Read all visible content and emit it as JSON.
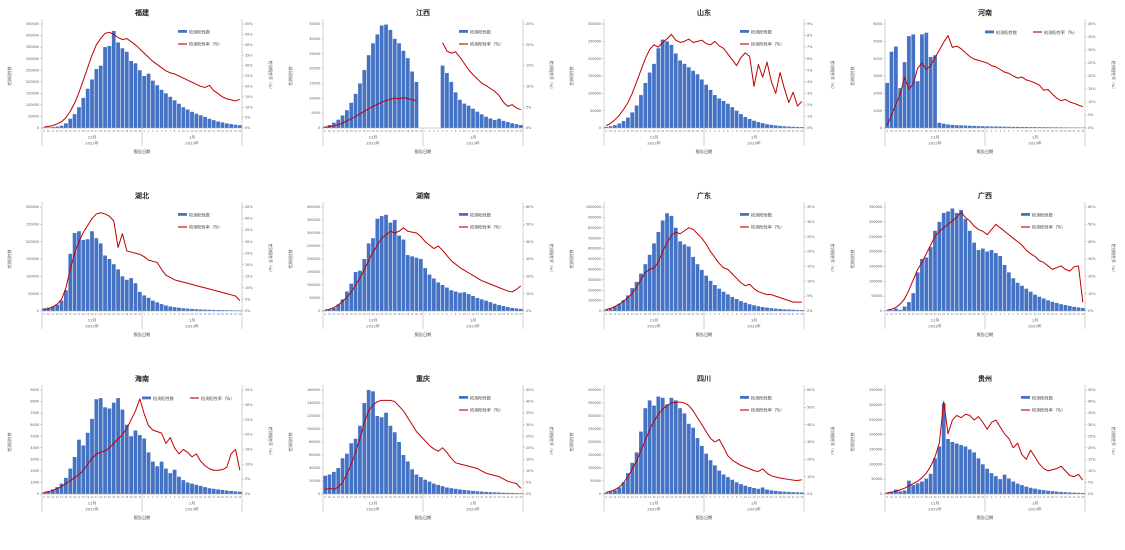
{
  "shared": {
    "legend": {
      "bars": "检测阳性数",
      "rate": "检测阳性率（%）"
    },
    "y_left_title": "检测阳性数",
    "y_right_title": "检测阳性率（%）",
    "x_axis": {
      "title": "报告日期",
      "month_labels": [
        "12月",
        "1月"
      ],
      "year_labels": [
        "2022年",
        "2023年"
      ],
      "days": [
        "9",
        "10",
        "11",
        "12",
        "13",
        "14",
        "15",
        "16",
        "17",
        "18",
        "19",
        "20",
        "21",
        "22",
        "23",
        "24",
        "25",
        "26",
        "27",
        "28",
        "29",
        "30",
        "31",
        "1",
        "2",
        "3",
        "4",
        "5",
        "6",
        "7",
        "8",
        "9",
        "10",
        "11",
        "12",
        "13",
        "14",
        "15",
        "16",
        "17",
        "18",
        "19",
        "20",
        "21",
        "22",
        "23"
      ]
    },
    "colors": {
      "bar": "#4472c4",
      "line": "#c00000",
      "axis": "#a6a6a6"
    }
  },
  "chart_data": [
    {
      "id": "fujian",
      "title": "福建",
      "type": "bar+line",
      "left_max": 450000,
      "left_step": 50000,
      "right_max": 50,
      "right_step": 5,
      "legend": "v",
      "bars": [
        2000,
        3000,
        4000,
        6000,
        10000,
        20000,
        40000,
        60000,
        90000,
        130000,
        170000,
        210000,
        255000,
        270000,
        350000,
        355000,
        420000,
        370000,
        345000,
        330000,
        290000,
        280000,
        250000,
        225000,
        235000,
        205000,
        185000,
        165000,
        150000,
        135000,
        120000,
        105000,
        90000,
        80000,
        70000,
        62000,
        55000,
        48000,
        40000,
        34000,
        28000,
        24000,
        20000,
        17000,
        14000,
        12000
      ],
      "rate": [
        0.5,
        0.8,
        1.2,
        2,
        3,
        5,
        8,
        12,
        17,
        23,
        29,
        35,
        40,
        43,
        45.5,
        46,
        45,
        43.5,
        42.5,
        43,
        41.5,
        40,
        38,
        36,
        34,
        32,
        30.5,
        29,
        27.5,
        26.5,
        26,
        25,
        24,
        23,
        22,
        21,
        20,
        19.5,
        20.5,
        18,
        16.5,
        15,
        14,
        13.5,
        13,
        13.8
      ]
    },
    {
      "id": "jiangxi",
      "title": "江西",
      "type": "bar+line",
      "left_max": 35000,
      "left_step": 5000,
      "right_max": 25,
      "right_step": 5,
      "legend": "v",
      "bars": [
        500,
        1000,
        1800,
        2800,
        4200,
        6000,
        8500,
        11500,
        15000,
        19500,
        24500,
        28500,
        31500,
        34500,
        34800,
        33000,
        30000,
        28500,
        26000,
        23500,
        19000,
        15500,
        null,
        null,
        null,
        null,
        null,
        21000,
        18500,
        15500,
        12000,
        9500,
        8200,
        7500,
        6500,
        5500,
        4600,
        3800,
        3200,
        2700,
        3100,
        2400,
        2000,
        1600,
        1300,
        1000
      ],
      "rate": [
        0.2,
        0.3,
        0.5,
        0.8,
        1.2,
        1.7,
        2.2,
        2.8,
        3.4,
        4,
        4.6,
        5.2,
        5.7,
        6.2,
        6.6,
        6.9,
        7.2,
        7,
        7.3,
        7.1,
        6.8,
        6.6,
        null,
        null,
        null,
        null,
        null,
        20.5,
        18.5,
        18,
        18.3,
        17,
        15.5,
        14,
        12.8,
        11.8,
        10.8,
        10.2,
        9.5,
        8.8,
        7.8,
        6.2,
        5.2,
        5.6,
        4.8,
        4.4
      ]
    },
    {
      "id": "shandong",
      "title": "山东",
      "type": "bar+line",
      "left_max": 300000,
      "left_step": 50000,
      "right_max": 9,
      "right_step": 1,
      "legend": "v",
      "bars": [
        3000,
        5000,
        8000,
        13000,
        20000,
        30000,
        45000,
        65000,
        95000,
        130000,
        160000,
        185000,
        230000,
        255000,
        250000,
        240000,
        215000,
        195000,
        185000,
        175000,
        165000,
        155000,
        140000,
        125000,
        110000,
        95000,
        85000,
        78000,
        70000,
        60000,
        50000,
        40000,
        32000,
        26000,
        21000,
        17000,
        14000,
        11000,
        9000,
        7500,
        6000,
        5000,
        4200,
        3500,
        3000,
        2600
      ],
      "rate": [
        0.2,
        0.4,
        0.7,
        1.1,
        1.6,
        2.2,
        3,
        4,
        5,
        6,
        6.8,
        7.2,
        7,
        7.4,
        7.7,
        8.1,
        7.6,
        7.4,
        7.5,
        7.7,
        7.4,
        7.5,
        7.6,
        7.3,
        7.2,
        7.5,
        7.1,
        6.9,
        6.4,
        5.9,
        5.4,
        6.1,
        6.5,
        6.2,
        3.6,
        5.5,
        4.4,
        5.7,
        4,
        3,
        4.8,
        3.4,
        2.2,
        3.1,
        1.9,
        2.3
      ]
    },
    {
      "id": "henan",
      "title": "河南",
      "type": "bar+line",
      "left_max": 6000,
      "left_step": 1000,
      "right_max": 40,
      "right_step": 5,
      "legend": "h",
      "bars": [
        2600,
        4400,
        4700,
        2300,
        3800,
        5300,
        5400,
        2700,
        5400,
        5500,
        4100,
        4200,
        300,
        250,
        200,
        180,
        160,
        150,
        140,
        130,
        120,
        110,
        100,
        95,
        90,
        85,
        80,
        75,
        70,
        68,
        65,
        60,
        58,
        55,
        52,
        50,
        48,
        45,
        42,
        40,
        38,
        35,
        32,
        30,
        28,
        25
      ],
      "rate": [
        1,
        5,
        9,
        13,
        19.5,
        15,
        17,
        23,
        25,
        22.5,
        24,
        27,
        30,
        33,
        35.5,
        31,
        31.5,
        30.5,
        29,
        27.5,
        26.5,
        26,
        25.5,
        25,
        24,
        23.5,
        22.5,
        21.5,
        21,
        20,
        19.2,
        19.6,
        18.5,
        18,
        17.3,
        16.5,
        14.5,
        14.8,
        13,
        11.5,
        10.5,
        11,
        10,
        9.5,
        8.8,
        8.2
      ]
    },
    {
      "id": "hubei",
      "title": "湖北",
      "type": "bar+line",
      "left_max": 300000,
      "left_step": 50000,
      "right_max": 45,
      "right_step": 5,
      "legend": "v",
      "bars": [
        8000,
        10000,
        13000,
        18000,
        30000,
        60000,
        165000,
        225000,
        230000,
        205000,
        207000,
        230000,
        210000,
        195000,
        160000,
        150000,
        135000,
        120000,
        100000,
        90000,
        95000,
        80000,
        55000,
        45000,
        38000,
        30000,
        25000,
        20000,
        16000,
        13000,
        11000,
        9500,
        8000,
        7000,
        6000,
        5200,
        4500,
        4000,
        3500,
        3100,
        2800,
        2500,
        2200,
        2000,
        1800,
        1600
      ],
      "rate": [
        0.5,
        1,
        1.8,
        3,
        5,
        10,
        18,
        25,
        30,
        34,
        37,
        40,
        42,
        42.5,
        42,
        41,
        39,
        27.5,
        33.5,
        26,
        25.5,
        25,
        24.5,
        23.5,
        22,
        21.5,
        21,
        18,
        15.5,
        14.5,
        13.5,
        13,
        12.5,
        12,
        11.5,
        11,
        10.5,
        10,
        9.5,
        9,
        8.5,
        8,
        7.5,
        7,
        6.5,
        4.5
      ]
    },
    {
      "id": "hunan",
      "title": "湖南",
      "type": "bar+line",
      "left_max": 400000,
      "left_step": 50000,
      "right_max": 60,
      "right_step": 10,
      "legend": "v",
      "bars": [
        3000,
        6000,
        12000,
        25000,
        45000,
        75000,
        105000,
        150000,
        155000,
        200000,
        260000,
        280000,
        355000,
        365000,
        370000,
        340000,
        350000,
        290000,
        275000,
        215000,
        210000,
        205000,
        200000,
        165000,
        140000,
        125000,
        110000,
        100000,
        90000,
        80000,
        75000,
        70000,
        72000,
        65000,
        58000,
        50000,
        45000,
        40000,
        34000,
        28000,
        23000,
        19000,
        15000,
        12000,
        10000,
        8000
      ],
      "rate": [
        0.5,
        1,
        2,
        3.5,
        5.5,
        8,
        11,
        15,
        19,
        24,
        29,
        34,
        38,
        42,
        44,
        46,
        45,
        46,
        48,
        46,
        45.5,
        45,
        43,
        40,
        38,
        36,
        37.5,
        35,
        32,
        29,
        27,
        25,
        23.5,
        22,
        20.5,
        19,
        17.5,
        16.5,
        15.5,
        14.5,
        13.5,
        12.5,
        11.5,
        11,
        12.5,
        14.5
      ]
    },
    {
      "id": "guangdong",
      "title": "广东",
      "type": "bar+line",
      "left_max": 1000000,
      "left_step": 100000,
      "right_max": 35,
      "right_step": 5,
      "legend": "v",
      "bars": [
        15000,
        25000,
        45000,
        70000,
        105000,
        150000,
        220000,
        280000,
        360000,
        450000,
        540000,
        650000,
        760000,
        870000,
        940000,
        915000,
        800000,
        670000,
        640000,
        620000,
        520000,
        450000,
        395000,
        340000,
        290000,
        250000,
        215000,
        185000,
        160000,
        135000,
        115000,
        95000,
        80000,
        65000,
        55000,
        46000,
        38000,
        32000,
        27000,
        23000,
        19000,
        16000,
        14000,
        12000,
        10000,
        9000
      ],
      "rate": [
        0.5,
        0.9,
        1.5,
        2.3,
        3.3,
        4.5,
        6,
        8,
        10.5,
        13,
        14,
        14.5,
        16.5,
        20,
        23,
        25.5,
        26.5,
        26,
        27,
        28,
        27.5,
        26,
        24.5,
        22.5,
        20,
        18,
        16,
        14.5,
        14,
        12.5,
        11,
        9.5,
        8.5,
        9,
        7.5,
        6.5,
        6,
        5.5,
        5.5,
        5,
        4.5,
        4,
        3.5,
        3,
        3,
        3
      ]
    },
    {
      "id": "guangxi",
      "title": "广西",
      "type": "bar+line",
      "left_max": 350000,
      "left_step": 50000,
      "right_max": 60,
      "right_step": 10,
      "legend": "v",
      "bars": [
        2000,
        3000,
        8000,
        4000,
        15000,
        30000,
        60000,
        130000,
        175000,
        180000,
        215000,
        270000,
        300000,
        330000,
        335000,
        345000,
        330000,
        340000,
        310000,
        270000,
        230000,
        205000,
        210000,
        200000,
        205000,
        195000,
        185000,
        155000,
        130000,
        110000,
        95000,
        85000,
        75000,
        65000,
        55000,
        48000,
        42000,
        36000,
        31000,
        27000,
        23000,
        20000,
        17000,
        14000,
        12000,
        10000
      ],
      "rate": [
        0.5,
        1,
        2,
        4,
        7,
        12,
        18,
        24,
        28,
        33,
        38,
        43,
        46,
        48,
        50,
        52,
        54,
        57,
        54,
        52,
        49,
        47,
        46,
        44,
        47,
        50,
        48,
        46,
        44,
        42,
        40,
        38,
        35,
        33,
        31.5,
        29,
        28,
        26,
        24,
        25,
        26,
        24,
        23,
        25.5,
        26,
        5
      ]
    },
    {
      "id": "hainan",
      "title": "海南",
      "type": "bar+line",
      "left_max": 9000,
      "left_step": 1000,
      "right_max": 35,
      "right_step": 5,
      "legend": "h",
      "bars": [
        150,
        250,
        400,
        600,
        900,
        1400,
        2200,
        3200,
        4700,
        4200,
        5300,
        6500,
        8200,
        8300,
        7500,
        7400,
        7900,
        8300,
        7300,
        6000,
        5000,
        5500,
        5100,
        4800,
        3600,
        2800,
        2400,
        2800,
        2200,
        1800,
        2100,
        1500,
        1200,
        1000,
        900,
        800,
        700,
        600,
        500,
        450,
        400,
        350,
        300,
        260,
        230,
        200
      ],
      "rate": [
        0.5,
        0.8,
        1.2,
        1.8,
        2.5,
        3.5,
        4.5,
        5.5,
        6.5,
        8,
        10,
        12,
        13.5,
        14,
        14.5,
        15.5,
        17,
        18.5,
        20,
        22,
        25,
        28,
        32,
        27,
        23,
        21.5,
        21,
        20.5,
        17,
        19,
        15.5,
        13.5,
        15,
        14,
        12.5,
        13.5,
        11,
        9.5,
        8.5,
        8,
        8,
        8.2,
        9,
        13.5,
        15,
        8
      ]
    },
    {
      "id": "chongqing",
      "title": "重庆",
      "type": "bar+line",
      "left_max": 160000,
      "left_step": 20000,
      "right_max": 45,
      "right_step": 5,
      "legend": "v",
      "bars": [
        28000,
        30000,
        34000,
        40000,
        55000,
        62000,
        78000,
        85000,
        105000,
        140000,
        160000,
        158000,
        120000,
        118000,
        125000,
        105000,
        95000,
        80000,
        60000,
        50000,
        38000,
        30000,
        26000,
        22000,
        19000,
        16000,
        14000,
        12000,
        10000,
        9000,
        8000,
        7000,
        6200,
        5500,
        4800,
        4200,
        3700,
        3300,
        2900,
        2600,
        2300,
        2000,
        1800,
        1600,
        1400,
        1200
      ],
      "rate": [
        2,
        2.5,
        2,
        3,
        5,
        8.5,
        13,
        18,
        24,
        31,
        36,
        38.5,
        40,
        40.5,
        40.5,
        40.5,
        40,
        38,
        36,
        33,
        30,
        27,
        25,
        23,
        21,
        19.5,
        18.5,
        20,
        18,
        15.5,
        13.5,
        13,
        12.5,
        12,
        11.5,
        11,
        10,
        9,
        8.5,
        8,
        7.5,
        6.5,
        5.5,
        5,
        4.5,
        2.5
      ]
    },
    {
      "id": "sichuan",
      "title": "四川",
      "type": "bar+line",
      "left_max": 400000,
      "left_step": 50000,
      "right_max": 60,
      "right_step": 10,
      "legend": "v",
      "bars": [
        5000,
        9000,
        15000,
        25000,
        45000,
        80000,
        120000,
        160000,
        240000,
        330000,
        360000,
        340000,
        375000,
        370000,
        345000,
        370000,
        360000,
        330000,
        310000,
        270000,
        255000,
        215000,
        185000,
        155000,
        130000,
        110000,
        90000,
        75000,
        65000,
        55000,
        45000,
        38000,
        32000,
        27000,
        23000,
        20000,
        25000,
        17000,
        14000,
        12000,
        10000,
        9000,
        8000,
        7000,
        6500,
        6000
      ],
      "rate": [
        1,
        1.5,
        2.5,
        4,
        6.5,
        10,
        14.5,
        19,
        25,
        31,
        37,
        42,
        46,
        49,
        51,
        52.5,
        53,
        53,
        52.5,
        51,
        48,
        44,
        40,
        36,
        32,
        30,
        31.5,
        27,
        22,
        19.5,
        18,
        16.5,
        15.5,
        14.5,
        13.5,
        13,
        14.5,
        12,
        10.5,
        9.8,
        9.2,
        8.8,
        8.4,
        8,
        7.8,
        8.2
      ]
    },
    {
      "id": "guizhou",
      "title": "贵州",
      "type": "bar+line",
      "left_max": 350000,
      "left_step": 50000,
      "right_max": 45,
      "right_step": 5,
      "legend": "v",
      "bars": [
        5000,
        7000,
        15000,
        9000,
        12000,
        45000,
        30000,
        36000,
        42000,
        52000,
        68000,
        120000,
        160000,
        305000,
        185000,
        175000,
        170000,
        165000,
        160000,
        150000,
        140000,
        120000,
        100000,
        85000,
        70000,
        60000,
        50000,
        65000,
        52000,
        42000,
        35000,
        30000,
        25000,
        21000,
        18000,
        15000,
        13000,
        11000,
        9500,
        8000,
        7000,
        6000,
        5200,
        4500,
        4000,
        3500
      ],
      "rate": [
        0.5,
        0.8,
        1.2,
        1.8,
        2.5,
        3.5,
        4.5,
        5.5,
        7,
        9,
        12,
        16,
        22,
        40,
        26,
        32,
        34,
        33,
        34.5,
        34,
        32,
        33.5,
        31,
        28,
        31,
        32,
        29,
        26,
        24,
        20,
        22,
        17,
        15,
        19,
        16,
        13,
        11,
        10,
        10.5,
        11,
        12,
        10,
        8,
        7.5,
        8.5,
        6
      ]
    }
  ]
}
